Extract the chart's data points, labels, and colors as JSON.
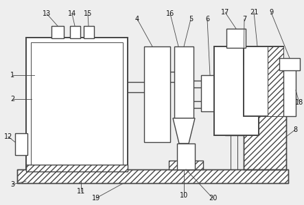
{
  "bg_color": "#eeeeee",
  "line_color": "#444444",
  "fig_width": 4.43,
  "fig_height": 3.0,
  "dpi": 100
}
